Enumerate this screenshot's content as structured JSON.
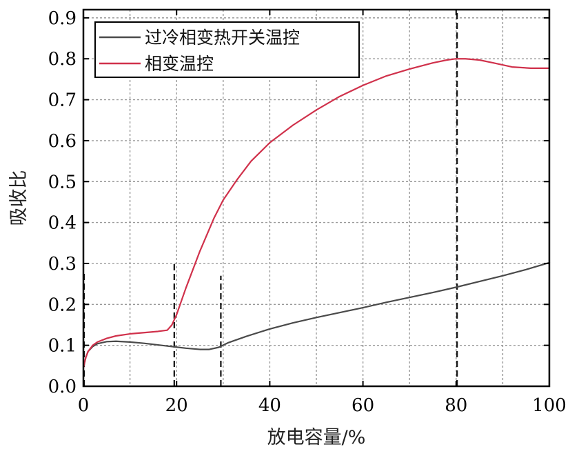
{
  "chart_data": {
    "type": "line",
    "title": "",
    "xlabel": "放电容量/%",
    "ylabel": "吸收比",
    "xlim": [
      0,
      100
    ],
    "ylim": [
      0,
      0.92
    ],
    "xticks": [
      0,
      20,
      40,
      60,
      80,
      100
    ],
    "xtick_labels": [
      "0",
      "20",
      "40",
      "60",
      "80",
      "100"
    ],
    "yticks": [
      0.0,
      0.1,
      0.2,
      0.3,
      0.4,
      0.5,
      0.6,
      0.7,
      0.8,
      0.9
    ],
    "ytick_labels": [
      "0.0",
      "0.1",
      "0.2",
      "0.3",
      "0.4",
      "0.5",
      "0.6",
      "0.7",
      "0.8",
      "0.9"
    ],
    "grid": true,
    "legend_position": "top-left",
    "series": [
      {
        "name": "过冷相变热开关温控",
        "color": "#4a4a4a",
        "x": [
          0,
          0.5,
          1,
          2,
          3,
          5,
          7,
          10,
          13,
          16,
          19,
          22,
          25,
          27,
          29,
          31,
          35,
          40,
          45,
          50,
          55,
          60,
          65,
          70,
          75,
          80,
          85,
          90,
          95,
          100
        ],
        "y": [
          0.045,
          0.07,
          0.085,
          0.097,
          0.104,
          0.109,
          0.11,
          0.108,
          0.105,
          0.101,
          0.097,
          0.093,
          0.09,
          0.09,
          0.095,
          0.106,
          0.122,
          0.14,
          0.155,
          0.168,
          0.18,
          0.192,
          0.205,
          0.217,
          0.229,
          0.242,
          0.256,
          0.27,
          0.285,
          0.302
        ]
      },
      {
        "name": "相变温控",
        "color": "#d0314b",
        "x": [
          0,
          0.5,
          1,
          2,
          3,
          5,
          7,
          10,
          13,
          16,
          18,
          19,
          20,
          22,
          25,
          28,
          30,
          33,
          36,
          40,
          45,
          50,
          55,
          60,
          65,
          70,
          75,
          78,
          80,
          82,
          85,
          88,
          92,
          96,
          100
        ],
        "y": [
          0.045,
          0.07,
          0.085,
          0.1,
          0.108,
          0.117,
          0.123,
          0.128,
          0.131,
          0.134,
          0.137,
          0.15,
          0.175,
          0.24,
          0.33,
          0.41,
          0.455,
          0.505,
          0.55,
          0.595,
          0.638,
          0.675,
          0.708,
          0.735,
          0.758,
          0.775,
          0.79,
          0.797,
          0.8,
          0.8,
          0.797,
          0.79,
          0.78,
          0.777,
          0.777
        ]
      }
    ],
    "reference_lines": [
      {
        "x": 0,
        "y_top": 0.28
      },
      {
        "x": 19.5,
        "y_top": 0.3
      },
      {
        "x": 29.5,
        "y_top": 0.27
      },
      {
        "x": 80.2,
        "y_top": 0.92
      }
    ]
  }
}
